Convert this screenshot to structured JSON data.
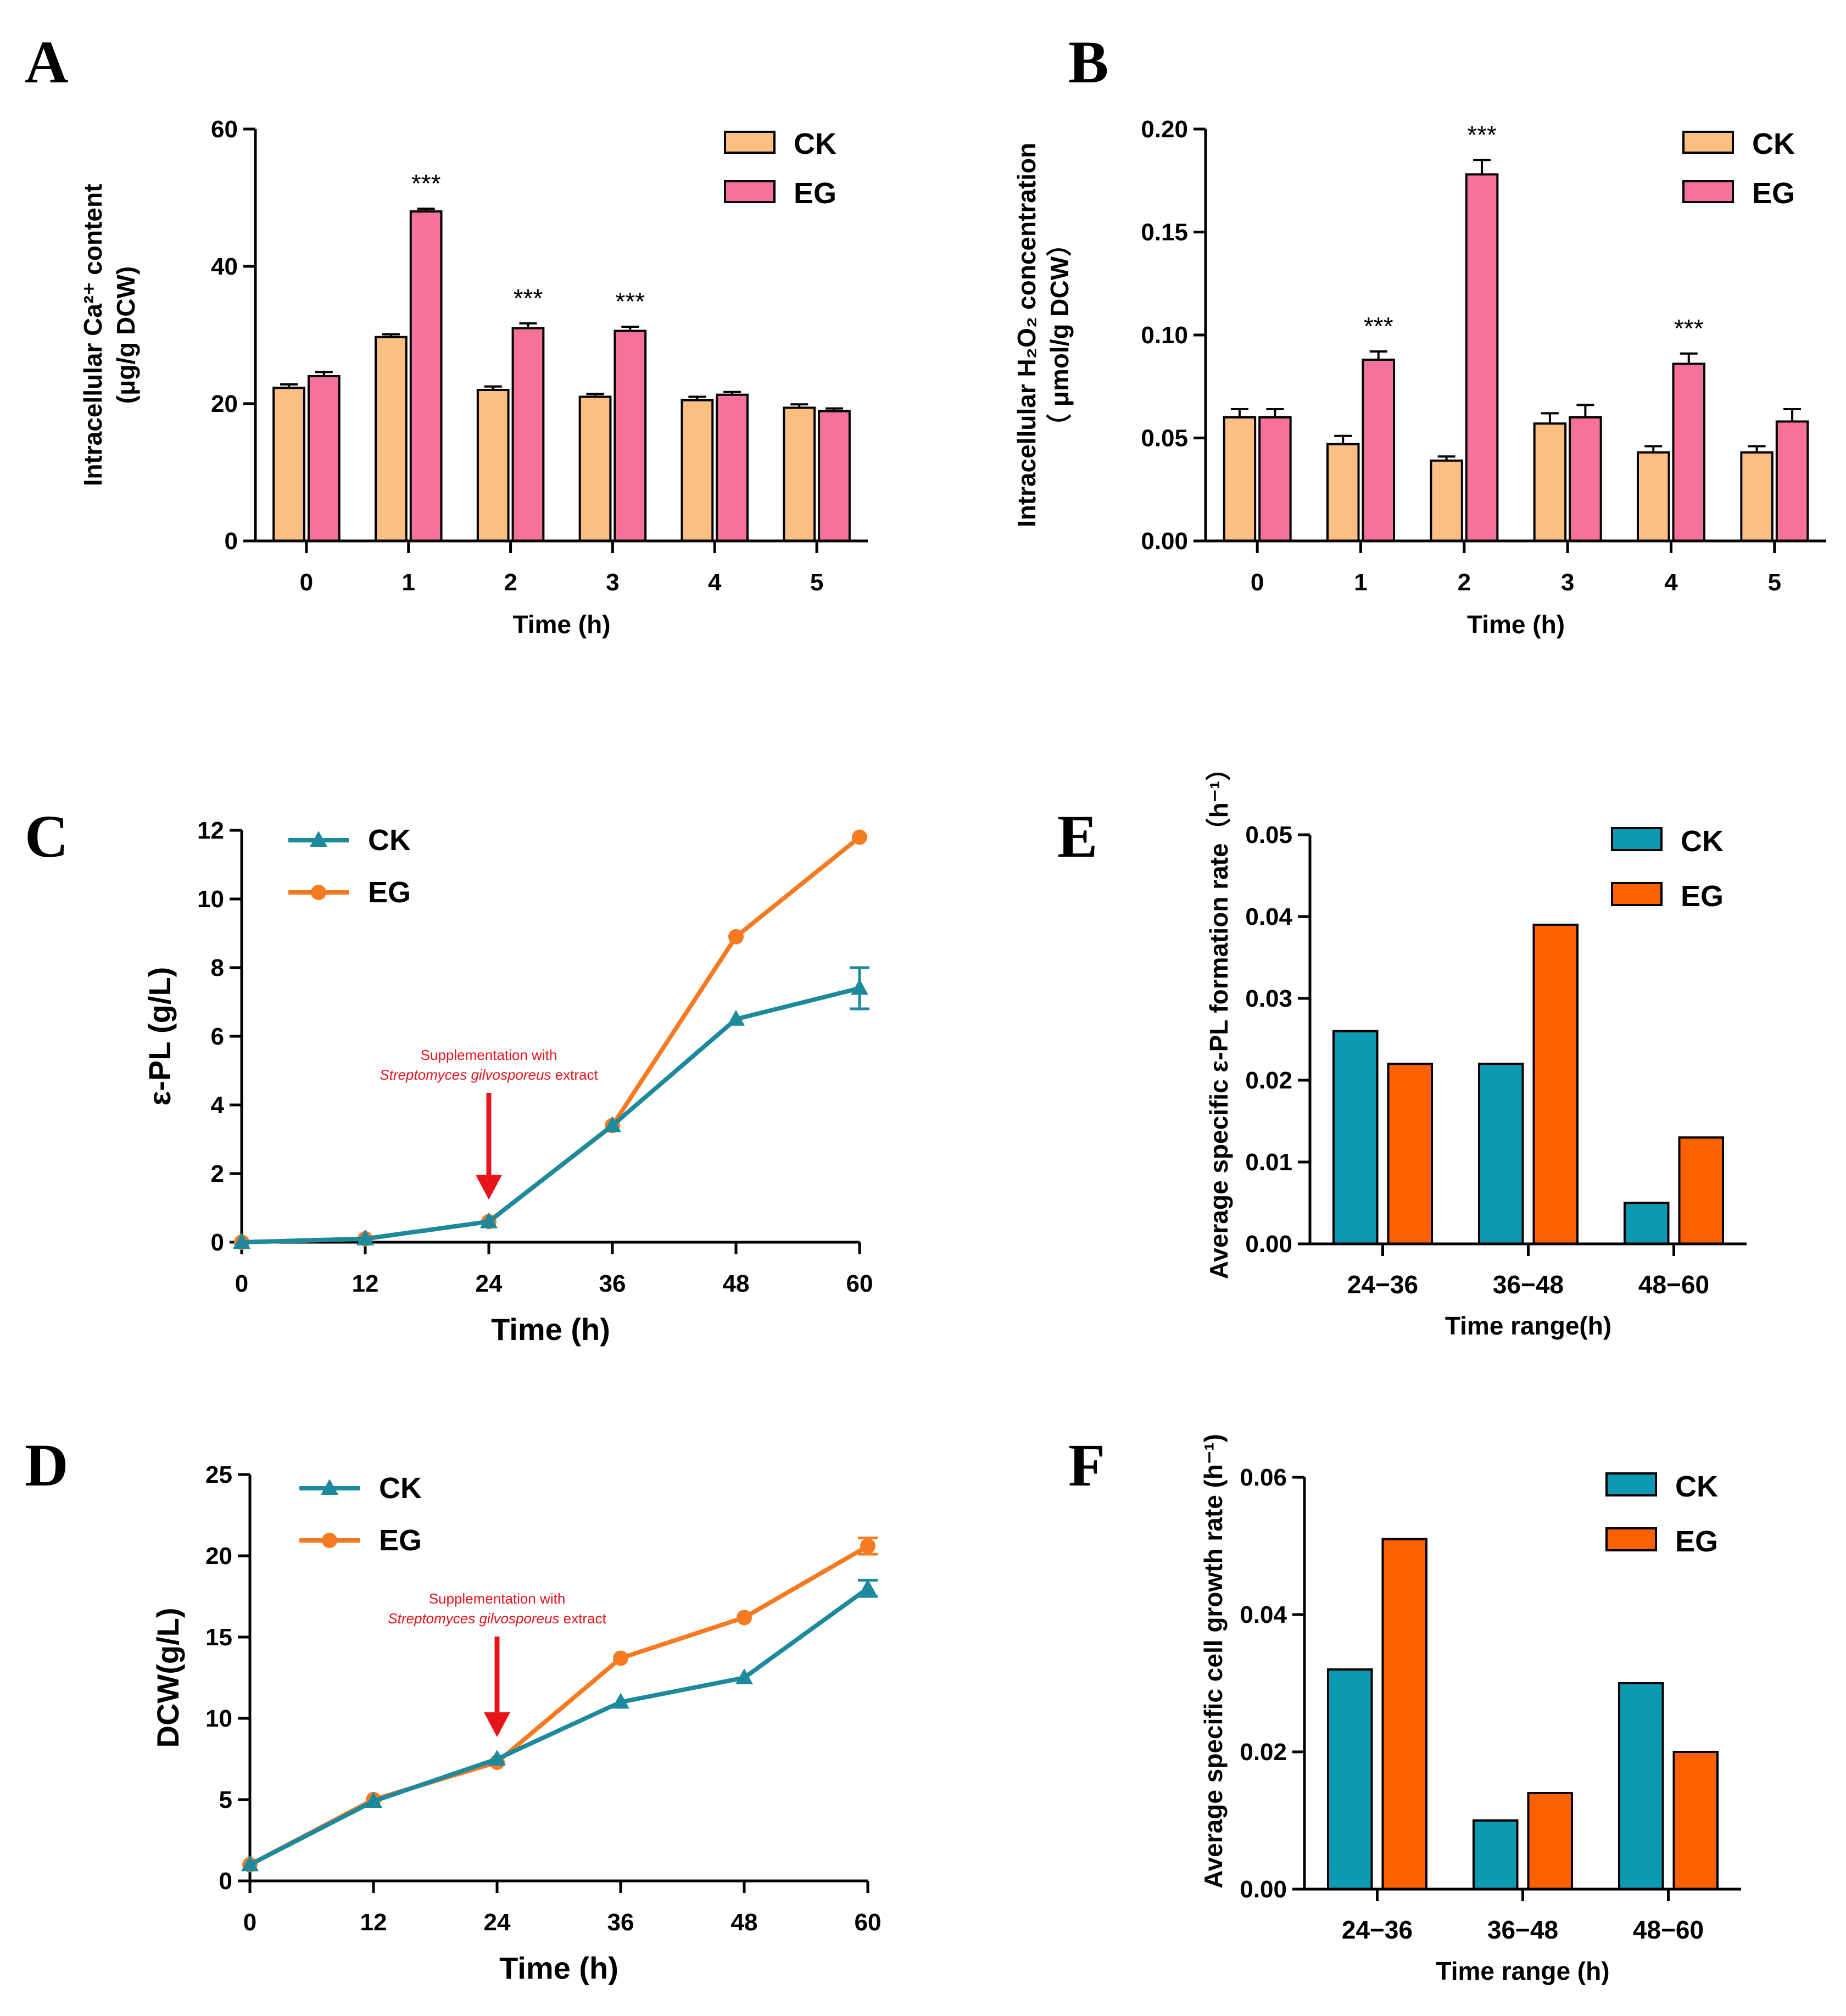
{
  "colors": {
    "ck_bar_ab": "#fbbf82",
    "eg_bar_ab": "#f6729a",
    "ck_line": "#1c8a9c",
    "eg_line": "#f57a22",
    "ck_bar_ef": "#0c9ab3",
    "eg_bar_ef": "#fd6102",
    "arrow": "#e8141b"
  },
  "chart_data": [
    {
      "panel": "A",
      "type": "bar",
      "xlabel": "Time (h)",
      "ylabel_line1": "Intracellular Ca²⁺ content",
      "ylabel_line2": "(μg/g DCW)",
      "categories": [
        "0",
        "1",
        "2",
        "3",
        "4",
        "5"
      ],
      "ylim": [
        0,
        60
      ],
      "yticks": [
        0,
        20,
        40,
        60
      ],
      "series": [
        {
          "name": "CK",
          "values": [
            22.3,
            29.7,
            22.0,
            21.0,
            20.5,
            19.4
          ],
          "errors": [
            0.5,
            0.4,
            0.5,
            0.4,
            0.5,
            0.5
          ]
        },
        {
          "name": "EG",
          "values": [
            24.0,
            48.0,
            31.0,
            30.6,
            21.3,
            18.9
          ],
          "errors": [
            0.6,
            0.4,
            0.7,
            0.6,
            0.4,
            0.4
          ]
        }
      ],
      "significance": [
        "",
        "***",
        "***",
        "***",
        "",
        ""
      ]
    },
    {
      "panel": "B",
      "type": "bar",
      "xlabel": "Time (h)",
      "ylabel_line1": "Intracellular H₂O₂ concentration",
      "ylabel_line2": "（ μmol/g DCW）",
      "categories": [
        "0",
        "1",
        "2",
        "3",
        "4",
        "5"
      ],
      "ylim": [
        0,
        0.2
      ],
      "yticks": [
        "0.00",
        "0.05",
        "0.10",
        "0.15",
        "0.20"
      ],
      "series": [
        {
          "name": "CK",
          "values": [
            0.06,
            0.047,
            0.039,
            0.057,
            0.043,
            0.043
          ],
          "errors": [
            0.004,
            0.004,
            0.002,
            0.005,
            0.003,
            0.003
          ]
        },
        {
          "name": "EG",
          "values": [
            0.06,
            0.088,
            0.178,
            0.06,
            0.086,
            0.058
          ],
          "errors": [
            0.004,
            0.004,
            0.007,
            0.006,
            0.005,
            0.006
          ]
        }
      ],
      "significance": [
        "",
        "***",
        "***",
        "",
        "***",
        ""
      ]
    },
    {
      "panel": "C",
      "type": "line",
      "xlabel": "Time (h)",
      "ylabel": "ε-PL (g/L)",
      "x": [
        0,
        12,
        24,
        36,
        48,
        60
      ],
      "xlim": [
        0,
        60
      ],
      "ylim": [
        0,
        12
      ],
      "yticks": [
        0,
        2,
        4,
        6,
        8,
        10,
        12
      ],
      "series": [
        {
          "name": "CK",
          "marker": "triangle",
          "values": [
            0.0,
            0.1,
            0.6,
            3.4,
            6.5,
            7.4
          ],
          "errors": [
            0,
            0,
            0,
            0,
            0,
            0.6
          ]
        },
        {
          "name": "EG",
          "marker": "circle",
          "values": [
            0.0,
            0.1,
            0.6,
            3.4,
            8.9,
            11.8
          ],
          "errors": [
            0,
            0,
            0,
            0,
            0,
            0
          ]
        }
      ],
      "annotation": {
        "line1": "Supplementation with",
        "line2_italic": "Streptomyces gilvosporeus",
        "line2_rest": " extract",
        "at_x": 24
      }
    },
    {
      "panel": "D",
      "type": "line",
      "xlabel": "Time (h)",
      "ylabel": "DCW(g/L)",
      "x": [
        0,
        12,
        24,
        36,
        48,
        60
      ],
      "xlim": [
        0,
        60
      ],
      "ylim": [
        0,
        25
      ],
      "yticks": [
        0,
        5,
        10,
        15,
        20,
        25
      ],
      "series": [
        {
          "name": "CK",
          "marker": "triangle",
          "values": [
            1.0,
            4.9,
            7.5,
            11.0,
            12.5,
            18.0
          ],
          "errors": [
            0,
            0,
            0,
            0,
            0,
            0.5
          ]
        },
        {
          "name": "EG",
          "marker": "circle",
          "values": [
            1.0,
            5.0,
            7.3,
            13.7,
            16.2,
            20.6
          ],
          "errors": [
            0,
            0,
            0,
            0,
            0,
            0.5
          ]
        }
      ],
      "annotation": {
        "line1": "Supplementation with",
        "line2_italic": "Streptomyces gilvosporeus",
        "line2_rest": " extract",
        "at_x": 24
      }
    },
    {
      "panel": "E",
      "type": "bar",
      "xlabel": "Time range(h)",
      "ylabel": "Average specific ε-PL formation rate（h⁻¹）",
      "categories": [
        "24−36",
        "36−48",
        "48−60"
      ],
      "ylim": [
        0,
        0.05
      ],
      "yticks": [
        "0.00",
        "0.01",
        "0.02",
        "0.03",
        "0.04",
        "0.05"
      ],
      "series": [
        {
          "name": "CK",
          "values": [
            0.026,
            0.022,
            0.005
          ]
        },
        {
          "name": "EG",
          "values": [
            0.022,
            0.039,
            0.013
          ]
        }
      ]
    },
    {
      "panel": "F",
      "type": "bar",
      "xlabel": "Time range (h)",
      "ylabel": "Average specific cell growth rate (h⁻¹)",
      "categories": [
        "24−36",
        "36−48",
        "48−60"
      ],
      "ylim": [
        0,
        0.06
      ],
      "yticks": [
        "0.00",
        "0.02",
        "0.04",
        "0.06"
      ],
      "series": [
        {
          "name": "CK",
          "values": [
            0.032,
            0.01,
            0.03
          ]
        },
        {
          "name": "EG",
          "values": [
            0.051,
            0.014,
            0.02
          ]
        }
      ]
    }
  ]
}
